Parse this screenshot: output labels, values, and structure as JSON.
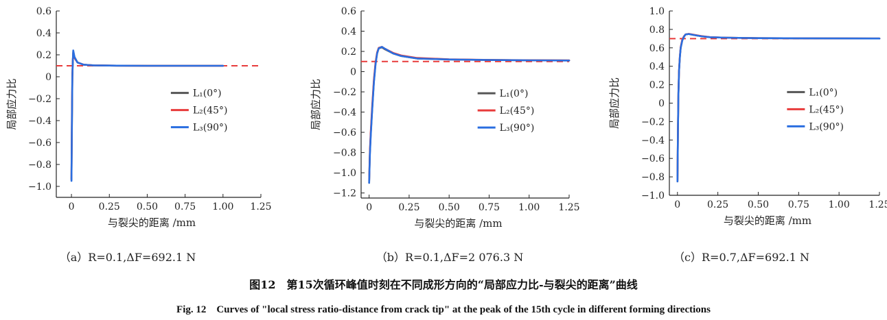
{
  "caption": {
    "cn": "图12　第15次循环峰值时刻在不同成形方向的“局部应力比-与裂尖的距离”曲线",
    "en": "Fig. 12　Curves of \"local stress ratio-distance from crack tip\" at the peak of the 15th cycle in different forming directions"
  },
  "chart_data": [
    {
      "type": "line",
      "sublabel": "（a）R=0.1,ΔF=692.1 N",
      "xlabel": "与裂尖的距离 /mm",
      "ylabel": "局部应力比",
      "xlim": [
        -0.1,
        1.25
      ],
      "ylim": [
        -1.1,
        0.6
      ],
      "xticks": [
        0,
        0.25,
        0.5,
        0.75,
        1.0,
        1.25
      ],
      "xtick_labels": [
        "0",
        "0.25",
        "0.50",
        "0.75",
        "1.00",
        "1.25"
      ],
      "yticks": [
        -1.0,
        -0.8,
        -0.6,
        -0.4,
        -0.2,
        0,
        0.2,
        0.4,
        0.6
      ],
      "ytick_labels": [
        "−1.0",
        "−0.8",
        "−0.6",
        "−0.4",
        "−0.2",
        "0",
        "0.2",
        "0.4",
        "0.6"
      ],
      "ref_line": 0.1,
      "legend_position": "center-right",
      "series": [
        {
          "name": "L₁(0°)",
          "color": "#555555",
          "x": [
            0,
            0.003,
            0.006,
            0.009,
            0.012,
            0.02,
            0.04,
            0.08,
            0.15,
            0.3,
            0.5,
            0.75,
            1.0
          ],
          "y": [
            -0.94,
            -0.5,
            0.0,
            0.15,
            0.23,
            0.18,
            0.13,
            0.11,
            0.104,
            0.101,
            0.1,
            0.1,
            0.1
          ]
        },
        {
          "name": "L₂(45°)",
          "color": "#e83a3a",
          "x": [
            0,
            0.003,
            0.006,
            0.009,
            0.012,
            0.02,
            0.04,
            0.08,
            0.15,
            0.3,
            0.5,
            0.75,
            1.0
          ],
          "y": [
            -0.93,
            -0.38,
            0.02,
            0.16,
            0.22,
            0.17,
            0.13,
            0.11,
            0.104,
            0.101,
            0.1,
            0.1,
            0.1
          ]
        },
        {
          "name": "L₃(90°)",
          "color": "#2a6ee0",
          "x": [
            0,
            0.003,
            0.006,
            0.009,
            0.012,
            0.02,
            0.04,
            0.08,
            0.15,
            0.3,
            0.5,
            0.75,
            1.0
          ],
          "y": [
            -0.95,
            -0.45,
            0.0,
            0.15,
            0.24,
            0.18,
            0.13,
            0.11,
            0.104,
            0.101,
            0.1,
            0.1,
            0.1
          ]
        }
      ]
    },
    {
      "type": "line",
      "sublabel": "（b）R=0.1,ΔF=2 076.3 N",
      "xlabel": "与裂尖的距离 /mm",
      "ylabel": "局部应力比",
      "xlim": [
        -0.05,
        1.25
      ],
      "ylim": [
        -1.25,
        0.6
      ],
      "xticks": [
        0,
        0.25,
        0.5,
        0.75,
        1.0,
        1.25
      ],
      "xtick_labels": [
        "0",
        "0.25",
        "0.50",
        "0.75",
        "1.00",
        "1.25"
      ],
      "yticks": [
        -1.2,
        -1.0,
        -0.8,
        -0.6,
        -0.4,
        -0.2,
        0,
        0.2,
        0.4,
        0.6
      ],
      "ytick_labels": [
        "−1.2",
        "−1.0",
        "−0.8",
        "−0.6",
        "−0.4",
        "−0.2",
        "0",
        "0.2",
        "0.4",
        "0.6"
      ],
      "ref_line": 0.1,
      "legend_position": "center-right",
      "series": [
        {
          "name": "L₁(0°)",
          "color": "#555555",
          "x": [
            0,
            0.005,
            0.01,
            0.02,
            0.03,
            0.04,
            0.05,
            0.06,
            0.08,
            0.1,
            0.15,
            0.2,
            0.3,
            0.5,
            0.75,
            1.0,
            1.25
          ],
          "y": [
            -1.1,
            -0.8,
            -0.62,
            -0.35,
            -0.1,
            0.08,
            0.18,
            0.23,
            0.24,
            0.22,
            0.18,
            0.155,
            0.13,
            0.12,
            0.115,
            0.112,
            0.11
          ]
        },
        {
          "name": "L₂(45°)",
          "color": "#e83a3a",
          "x": [
            0,
            0.005,
            0.01,
            0.02,
            0.03,
            0.04,
            0.05,
            0.06,
            0.08,
            0.1,
            0.15,
            0.2,
            0.3,
            0.5,
            0.75,
            1.0,
            1.25
          ],
          "y": [
            -1.08,
            -0.78,
            -0.6,
            -0.32,
            -0.08,
            0.09,
            0.19,
            0.235,
            0.245,
            0.225,
            0.185,
            0.16,
            0.135,
            0.122,
            0.116,
            0.113,
            0.112
          ]
        },
        {
          "name": "L₃(90°)",
          "color": "#2a6ee0",
          "x": [
            0,
            0.005,
            0.01,
            0.02,
            0.03,
            0.04,
            0.05,
            0.06,
            0.08,
            0.1,
            0.15,
            0.2,
            0.3,
            0.5,
            0.75,
            1.0,
            1.25
          ],
          "y": [
            -1.1,
            -0.82,
            -0.64,
            -0.36,
            -0.11,
            0.07,
            0.18,
            0.23,
            0.245,
            0.225,
            0.18,
            0.155,
            0.13,
            0.12,
            0.115,
            0.112,
            0.11
          ]
        }
      ]
    },
    {
      "type": "line",
      "sublabel": "（c）R=0.7,ΔF=692.1 N",
      "xlabel": "与裂尖的距离 /mm",
      "ylabel": "局部应力比",
      "xlim": [
        -0.05,
        1.25
      ],
      "ylim": [
        -1.0,
        1.0
      ],
      "xticks": [
        0,
        0.25,
        0.5,
        0.75,
        1.0,
        1.25
      ],
      "xtick_labels": [
        "0",
        "0.25",
        "0.50",
        "0.75",
        "1.00",
        "1.25"
      ],
      "yticks": [
        -1.0,
        -0.8,
        -0.6,
        -0.4,
        -0.2,
        0,
        0.2,
        0.4,
        0.6,
        0.8,
        1.0
      ],
      "ytick_labels": [
        "−1.0",
        "−0.8",
        "−0.6",
        "−0.4",
        "−0.2",
        "0",
        "0.2",
        "0.4",
        "0.6",
        "0.8",
        "1.0"
      ],
      "ref_line": 0.7,
      "legend_position": "center-right",
      "series": [
        {
          "name": "L₁(0°)",
          "color": "#555555",
          "x": [
            0,
            0.003,
            0.006,
            0.01,
            0.015,
            0.02,
            0.03,
            0.04,
            0.05,
            0.07,
            0.1,
            0.15,
            0.2,
            0.3,
            0.5,
            0.75,
            1.0,
            1.25
          ],
          "y": [
            -0.85,
            -0.3,
            0.1,
            0.35,
            0.5,
            0.6,
            0.68,
            0.72,
            0.745,
            0.75,
            0.74,
            0.725,
            0.715,
            0.71,
            0.705,
            0.703,
            0.702,
            0.701
          ]
        },
        {
          "name": "L₂(45°)",
          "color": "#e83a3a",
          "x": [
            0,
            0.003,
            0.006,
            0.01,
            0.015,
            0.02,
            0.03,
            0.04,
            0.05,
            0.07,
            0.1,
            0.15,
            0.2,
            0.3,
            0.5,
            0.75,
            1.0,
            1.25
          ],
          "y": [
            -0.84,
            -0.28,
            0.12,
            0.36,
            0.51,
            0.61,
            0.69,
            0.725,
            0.745,
            0.752,
            0.742,
            0.727,
            0.716,
            0.71,
            0.705,
            0.703,
            0.702,
            0.701
          ]
        },
        {
          "name": "L₃(90°)",
          "color": "#2a6ee0",
          "x": [
            0,
            0.003,
            0.006,
            0.01,
            0.015,
            0.02,
            0.03,
            0.04,
            0.05,
            0.07,
            0.1,
            0.15,
            0.2,
            0.3,
            0.5,
            0.75,
            1.0,
            1.25
          ],
          "y": [
            -0.85,
            -0.3,
            0.1,
            0.35,
            0.5,
            0.6,
            0.68,
            0.72,
            0.745,
            0.75,
            0.74,
            0.725,
            0.715,
            0.71,
            0.705,
            0.703,
            0.702,
            0.701
          ]
        }
      ]
    }
  ]
}
